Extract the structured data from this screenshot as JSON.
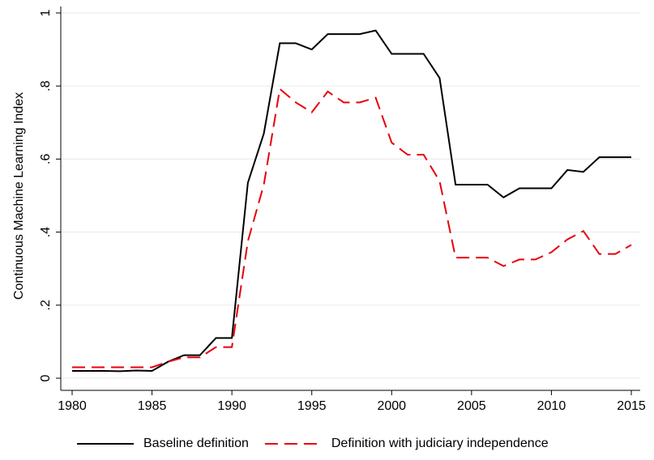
{
  "chart_data": {
    "type": "line",
    "y_label": "Continuous Machine Learning Index",
    "x": [
      1980,
      1981,
      1982,
      1983,
      1984,
      1985,
      1986,
      1987,
      1988,
      1989,
      1990,
      1991,
      1992,
      1993,
      1994,
      1995,
      1996,
      1997,
      1998,
      1999,
      2000,
      2001,
      2002,
      2003,
      2004,
      2005,
      2006,
      2007,
      2008,
      2009,
      2010,
      2011,
      2012,
      2013,
      2014,
      2015
    ],
    "series": [
      {
        "name": "Baseline definition",
        "color": "#000000",
        "dash": "solid",
        "values": [
          0.02,
          0.02,
          0.02,
          0.019,
          0.021,
          0.02,
          0.045,
          0.063,
          0.063,
          0.11,
          0.11,
          0.535,
          0.67,
          0.917,
          0.917,
          0.9,
          0.942,
          0.942,
          0.942,
          0.952,
          0.888,
          0.888,
          0.888,
          0.822,
          0.53,
          0.53,
          0.53,
          0.495,
          0.52,
          0.52,
          0.52,
          0.57,
          0.565,
          0.605,
          0.605,
          0.605
        ]
      },
      {
        "name": "Definition with judiciary independence",
        "color": "#e8000b",
        "dash": "dashed",
        "values": [
          0.03,
          0.03,
          0.03,
          0.03,
          0.03,
          0.03,
          0.045,
          0.057,
          0.057,
          0.085,
          0.085,
          0.375,
          0.53,
          0.792,
          0.755,
          0.728,
          0.785,
          0.755,
          0.755,
          0.768,
          0.645,
          0.612,
          0.612,
          0.54,
          0.33,
          0.33,
          0.33,
          0.307,
          0.325,
          0.325,
          0.345,
          0.38,
          0.403,
          0.34,
          0.34,
          0.365
        ]
      }
    ],
    "xlim": [
      1980,
      2015
    ],
    "xticks": [
      1980,
      1985,
      1990,
      1995,
      2000,
      2005,
      2010,
      2015
    ],
    "ylim": [
      0,
      1
    ],
    "yticks": [
      0,
      {
        "value": 0.2,
        "label": ".2"
      },
      {
        "value": 0.4,
        "label": ".4"
      },
      {
        "value": 0.6,
        "label": ".6"
      },
      {
        "value": 0.8,
        "label": ".8"
      },
      1
    ],
    "grid": true,
    "legend": "bottom"
  }
}
